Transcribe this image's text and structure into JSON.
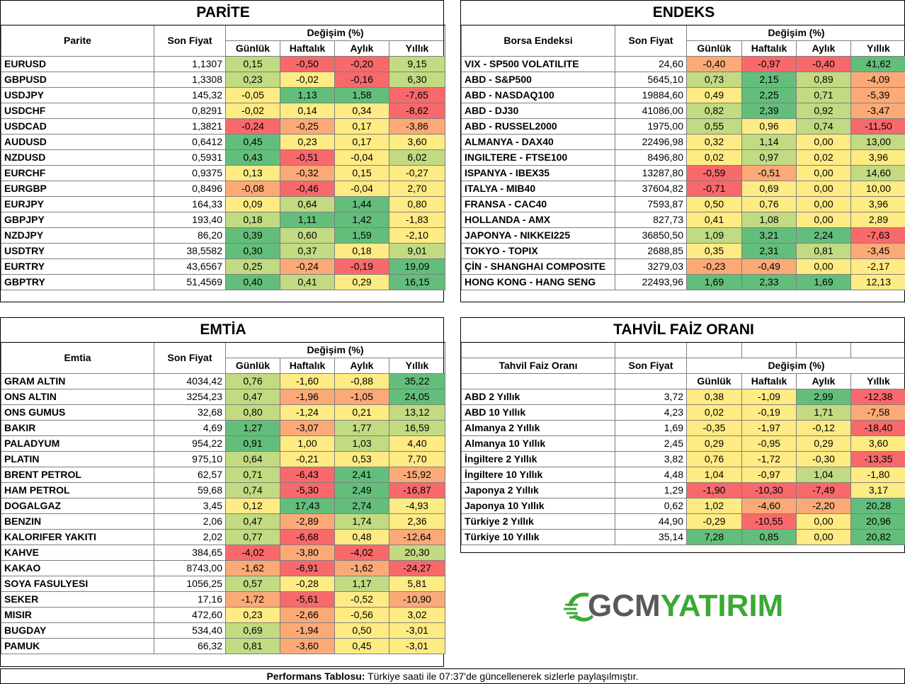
{
  "colors": {
    "red": "#f8696b",
    "orange": "#fbaa77",
    "yellow": "#ffeb84",
    "lightgreen": "#c2da81",
    "green": "#63be7b",
    "brand_gray": "#595959",
    "brand_green": "#3aa935"
  },
  "headers": {
    "last": "Son Fiyat",
    "change": "Değişim (%)",
    "daily": "Günlük",
    "weekly": "Haftalık",
    "monthly": "Aylık",
    "yearly": "Yıllık"
  },
  "parite": {
    "title": "PARİTE",
    "col": "Parite",
    "rows": [
      {
        "name": "EURUSD",
        "last": "1,1307",
        "d": "0,15",
        "w": "-0,50",
        "m": "-0,20",
        "y": "9,15"
      },
      {
        "name": "GBPUSD",
        "last": "1,3308",
        "d": "0,23",
        "w": "-0,02",
        "m": "-0,16",
        "y": "6,30"
      },
      {
        "name": "USDJPY",
        "last": "145,32",
        "d": "-0,05",
        "w": "1,13",
        "m": "1,58",
        "y": "-7,65"
      },
      {
        "name": "USDCHF",
        "last": "0,8291",
        "d": "-0,02",
        "w": "0,14",
        "m": "0,34",
        "y": "-8,62"
      },
      {
        "name": "USDCAD",
        "last": "1,3821",
        "d": "-0,24",
        "w": "-0,25",
        "m": "0,17",
        "y": "-3,86"
      },
      {
        "name": "AUDUSD",
        "last": "0,6412",
        "d": "0,45",
        "w": "0,23",
        "m": "0,17",
        "y": "3,60"
      },
      {
        "name": "NZDUSD",
        "last": "0,5931",
        "d": "0,43",
        "w": "-0,51",
        "m": "-0,04",
        "y": "6,02"
      },
      {
        "name": "EURCHF",
        "last": "0,9375",
        "d": "0,13",
        "w": "-0,32",
        "m": "0,15",
        "y": "-0,27"
      },
      {
        "name": "EURGBP",
        "last": "0,8496",
        "d": "-0,08",
        "w": "-0,46",
        "m": "-0,04",
        "y": "2,70"
      },
      {
        "name": "EURJPY",
        "last": "164,33",
        "d": "0,09",
        "w": "0,64",
        "m": "1,44",
        "y": "0,80"
      },
      {
        "name": "GBPJPY",
        "last": "193,40",
        "d": "0,18",
        "w": "1,11",
        "m": "1,42",
        "y": "-1,83"
      },
      {
        "name": "NZDJPY",
        "last": "86,20",
        "d": "0,39",
        "w": "0,60",
        "m": "1,59",
        "y": "-2,10"
      },
      {
        "name": "USDTRY",
        "last": "38,5582",
        "d": "0,30",
        "w": "0,37",
        "m": "0,18",
        "y": "9,01"
      },
      {
        "name": "EURTRY",
        "last": "43,6567",
        "d": "0,25",
        "w": "-0,24",
        "m": "-0,19",
        "y": "19,09"
      },
      {
        "name": "GBPTRY",
        "last": "51,4569",
        "d": "0,40",
        "w": "0,41",
        "m": "0,29",
        "y": "16,15"
      }
    ]
  },
  "endeks": {
    "title": "ENDEKS",
    "col": "Borsa Endeksi",
    "rows": [
      {
        "name": "VIX  - SP500 VOLATILITE",
        "last": "24,60",
        "d": "-0,40",
        "w": "-0,97",
        "m": "-0,40",
        "y": "41,62"
      },
      {
        "name": "ABD - S&P500",
        "last": "5645,10",
        "d": "0,73",
        "w": "2,15",
        "m": "0,89",
        "y": "-4,09"
      },
      {
        "name": "ABD - NASDAQ100",
        "last": "19884,60",
        "d": "0,49",
        "w": "2,25",
        "m": "0,71",
        "y": "-5,39"
      },
      {
        "name": "ABD - DJ30",
        "last": "41086,00",
        "d": "0,82",
        "w": "2,39",
        "m": "0,92",
        "y": "-3,47"
      },
      {
        "name": "ABD - RUSSEL2000",
        "last": "1975,00",
        "d": "0,55",
        "w": "0,96",
        "m": "0,74",
        "y": "-11,50"
      },
      {
        "name": "ALMANYA - DAX40",
        "last": "22496,98",
        "d": "0,32",
        "w": "1,14",
        "m": "0,00",
        "y": "13,00"
      },
      {
        "name": "INGILTERE - FTSE100",
        "last": "8496,80",
        "d": "0,02",
        "w": "0,97",
        "m": "0,02",
        "y": "3,96"
      },
      {
        "name": "ISPANYA - IBEX35",
        "last": "13287,80",
        "d": "-0,59",
        "w": "-0,51",
        "m": "0,00",
        "y": "14,60"
      },
      {
        "name": "ITALYA - MIB40",
        "last": "37604,82",
        "d": "-0,71",
        "w": "0,69",
        "m": "0,00",
        "y": "10,00"
      },
      {
        "name": "FRANSA - CAC40",
        "last": "7593,87",
        "d": "0,50",
        "w": "0,76",
        "m": "0,00",
        "y": "3,96"
      },
      {
        "name": "HOLLANDA - AMX",
        "last": "827,73",
        "d": "0,41",
        "w": "1,08",
        "m": "0,00",
        "y": "2,89"
      },
      {
        "name": "JAPONYA - NIKKEI225",
        "last": "36850,50",
        "d": "1,09",
        "w": "3,21",
        "m": "2,24",
        "y": "-7,63"
      },
      {
        "name": "TOKYO - TOPIX",
        "last": "2688,85",
        "d": "0,35",
        "w": "2,31",
        "m": "0,81",
        "y": "-3,45"
      },
      {
        "name": "ÇİN - SHANGHAI COMPOSITE",
        "last": "3279,03",
        "d": "-0,23",
        "w": "-0,49",
        "m": "0,00",
        "y": "-2,17"
      },
      {
        "name": "HONG KONG - HANG SENG",
        "last": "22493,96",
        "d": "1,69",
        "w": "2,33",
        "m": "1,69",
        "y": "12,13"
      }
    ]
  },
  "emtia": {
    "title": "EMTİA",
    "col": "Emtia",
    "rows": [
      {
        "name": "GRAM ALTIN",
        "last": "4034,42",
        "d": "0,76",
        "w": "-1,60",
        "m": "-0,88",
        "y": "35,22"
      },
      {
        "name": "ONS ALTIN",
        "last": "3254,23",
        "d": "0,47",
        "w": "-1,96",
        "m": "-1,05",
        "y": "24,05"
      },
      {
        "name": "ONS GUMUS",
        "last": "32,68",
        "d": "0,80",
        "w": "-1,24",
        "m": "0,21",
        "y": "13,12"
      },
      {
        "name": "BAKIR",
        "last": "4,69",
        "d": "1,27",
        "w": "-3,07",
        "m": "1,77",
        "y": "16,59"
      },
      {
        "name": "PALADYUM",
        "last": "954,22",
        "d": "0,91",
        "w": "1,00",
        "m": "1,03",
        "y": "4,40"
      },
      {
        "name": "PLATIN",
        "last": "975,10",
        "d": "0,64",
        "w": "-0,21",
        "m": "0,53",
        "y": "7,70"
      },
      {
        "name": "BRENT PETROL",
        "last": "62,57",
        "d": "0,71",
        "w": "-6,43",
        "m": "2,41",
        "y": "-15,92"
      },
      {
        "name": "HAM PETROL",
        "last": "59,68",
        "d": "0,74",
        "w": "-5,30",
        "m": "2,49",
        "y": "-16,87"
      },
      {
        "name": "DOGALGAZ",
        "last": "3,45",
        "d": "0,12",
        "w": "17,43",
        "m": "2,74",
        "y": "-4,93"
      },
      {
        "name": "BENZIN",
        "last": "2,06",
        "d": "0,47",
        "w": "-2,89",
        "m": "1,74",
        "y": "2,36"
      },
      {
        "name": "KALORIFER YAKITI",
        "last": "2,02",
        "d": "0,77",
        "w": "-6,68",
        "m": "0,48",
        "y": "-12,64"
      },
      {
        "name": "KAHVE",
        "last": "384,65",
        "d": "-4,02",
        "w": "-3,80",
        "m": "-4,02",
        "y": "20,30"
      },
      {
        "name": "KAKAO",
        "last": "8743,00",
        "d": "-1,62",
        "w": "-6,91",
        "m": "-1,62",
        "y": "-24,27"
      },
      {
        "name": "SOYA FASULYESI",
        "last": "1056,25",
        "d": "0,57",
        "w": "-0,28",
        "m": "1,17",
        "y": "5,81"
      },
      {
        "name": "SEKER",
        "last": "17,16",
        "d": "-1,72",
        "w": "-5,61",
        "m": "-0,52",
        "y": "-10,90"
      },
      {
        "name": "MISIR",
        "last": "472,60",
        "d": "0,23",
        "w": "-2,66",
        "m": "-0,56",
        "y": "3,02"
      },
      {
        "name": "BUGDAY",
        "last": "534,40",
        "d": "0,69",
        "w": "-1,94",
        "m": "0,50",
        "y": "-3,01"
      },
      {
        "name": "PAMUK",
        "last": "66,32",
        "d": "0,81",
        "w": "-3,60",
        "m": "0,45",
        "y": "-3,01"
      }
    ]
  },
  "tahvil": {
    "title": "TAHVİL FAİZ ORANI",
    "col": "Tahvil Faiz Oranı",
    "rows": [
      {
        "name": "ABD 2 Yıllık",
        "last": "3,72",
        "d": "0,38",
        "w": "-1,09",
        "m": "2,99",
        "y": "-12,38"
      },
      {
        "name": "ABD 10 Yıllık",
        "last": "4,23",
        "d": "0,02",
        "w": "-0,19",
        "m": "1,71",
        "y": "-7,58"
      },
      {
        "name": "Almanya 2 Yıllık",
        "last": "1,69",
        "d": "-0,35",
        "w": "-1,97",
        "m": "-0,12",
        "y": "-18,40"
      },
      {
        "name": "Almanya 10 Yıllık",
        "last": "2,45",
        "d": "0,29",
        "w": "-0,95",
        "m": "0,29",
        "y": "3,60"
      },
      {
        "name": "İngiltere 2 Yıllık",
        "last": "3,82",
        "d": "0,76",
        "w": "-1,72",
        "m": "-0,30",
        "y": "-13,35"
      },
      {
        "name": "İngiltere 10 Yıllık",
        "last": "4,48",
        "d": "1,04",
        "w": "-0,97",
        "m": "1,04",
        "y": "-1,80"
      },
      {
        "name": "Japonya 2 Yıllık",
        "last": "1,29",
        "d": "-1,90",
        "w": "-10,30",
        "m": "-7,49",
        "y": "3,17"
      },
      {
        "name": "Japonya 10 Yıllık",
        "last": "0,62",
        "d": "1,02",
        "w": "-4,60",
        "m": "-2,20",
        "y": "20,28"
      },
      {
        "name": "Türkiye 2 Yıllık",
        "last": "44,90",
        "d": "-0,29",
        "w": "-10,55",
        "m": "0,00",
        "y": "20,96"
      },
      {
        "name": "Türkiye 10 Yıllık",
        "last": "35,14",
        "d": "7,28",
        "w": "0,85",
        "m": "0,00",
        "y": "20,82"
      }
    ]
  },
  "logo": {
    "part1": "GCM",
    "part2": "YATIRIM"
  },
  "footer": {
    "bold": "Performans Tablosu:",
    "text": " Türkiye saati ile 07:37'de güncellenerek sizlerle paylaşılmıştır."
  }
}
